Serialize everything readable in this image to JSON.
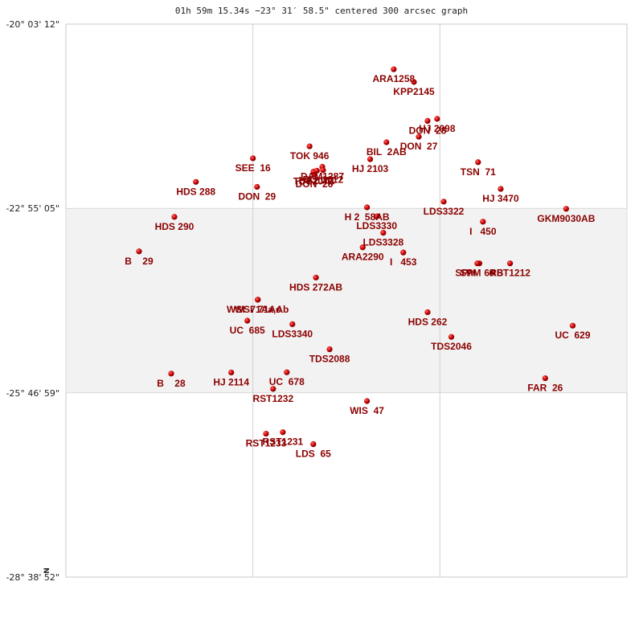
{
  "chart_data": {
    "type": "scatter",
    "title": "01h 59m 15.34s −23° 31′ 58.5\" centered 300 arcsec graph",
    "north_marker": "N",
    "y_ticks": [
      "-20° 03' 12\"",
      "-22° 55' 05\"",
      "-25° 46' 59\"",
      "-28° 38' 52\""
    ],
    "xlim": [
      0,
      300
    ],
    "ylim": [
      0,
      300
    ],
    "band": [
      100,
      200
    ],
    "vlines": [
      100,
      200
    ],
    "marker_color": "#cc0000",
    "label_color": "#8b0000",
    "points": [
      {
        "name": "ARA1258",
        "x": 175.3,
        "y": 24.5,
        "dx": 0,
        "dy": 16
      },
      {
        "name": "KPP2145",
        "x": 186.1,
        "y": 31.4,
        "dx": 0,
        "dy": 16
      },
      {
        "name": "DON  28",
        "x": 193.4,
        "y": 52.5,
        "dx": 0,
        "dy": 16
      },
      {
        "name": "HJ 2098",
        "x": 198.5,
        "y": 51.4,
        "dx": 0,
        "dy": 16
      },
      {
        "name": "DON  27",
        "x": 188.7,
        "y": 61.1,
        "dx": 0,
        "dy": 16
      },
      {
        "name": "BIL  2AB",
        "x": 171.4,
        "y": 64.1,
        "dx": 0,
        "dy": 16
      },
      {
        "name": "TOK 946",
        "x": 130.3,
        "y": 66.3,
        "dx": 0,
        "dy": 16
      },
      {
        "name": "HJ 2103",
        "x": 162.7,
        "y": 73.3,
        "dx": 0,
        "dy": 16
      },
      {
        "name": "SEE  16",
        "x": 100.0,
        "y": 72.8,
        "dx": 0,
        "dy": 16
      },
      {
        "name": "TSN  71",
        "x": 220.4,
        "y": 74.9,
        "dx": 0,
        "dy": 16
      },
      {
        "name": "HDS 288",
        "x": 69.5,
        "y": 85.6,
        "dx": 0,
        "dy": 16
      },
      {
        "name": "DON  29",
        "x": 102.2,
        "y": 88.3,
        "dx": 0,
        "dy": 16
      },
      {
        "name": "DAM1287",
        "x": 137.1,
        "y": 77.4,
        "dx": 0,
        "dy": 16
      },
      {
        "name": "DON  26",
        "x": 132.8,
        "y": 81.5,
        "dx": 0,
        "dy": 16
      },
      {
        "name": "TDS2072",
        "x": 132.4,
        "y": 80.0,
        "dx": 0,
        "dy": 16
      },
      {
        "name": "HJ 2101",
        "x": 134.2,
        "y": 79.5,
        "dx": 0,
        "dy": 16
      },
      {
        "name": "BU  1012",
        "x": 137.5,
        "y": 79.2,
        "dx": 0,
        "dy": 16
      },
      {
        "name": "HJ 3470",
        "x": 232.5,
        "y": 89.4,
        "dx": 0,
        "dy": 16
      },
      {
        "name": "LDS3322",
        "x": 202.0,
        "y": 96.3,
        "dx": 0,
        "dy": 16
      },
      {
        "name": "H 2  58AB",
        "x": 161.0,
        "y": 99.4,
        "dx": 0,
        "dy": 16
      },
      {
        "name": "GKM9030AB",
        "x": 267.5,
        "y": 100.2,
        "dx": 0,
        "dy": 16
      },
      {
        "name": "HDS 290",
        "x": 58.0,
        "y": 104.6,
        "dx": 0,
        "dy": 16
      },
      {
        "name": "LDS3330",
        "x": 166.2,
        "y": 104.3,
        "dx": 0,
        "dy": 16
      },
      {
        "name": "I   450",
        "x": 223.0,
        "y": 107.2,
        "dx": 0,
        "dy": 16
      },
      {
        "name": "LDS3328",
        "x": 169.7,
        "y": 113.2,
        "dx": 0,
        "dy": 16
      },
      {
        "name": "ARA2290",
        "x": 158.7,
        "y": 121.1,
        "dx": 0,
        "dy": 16
      },
      {
        "name": "I   453",
        "x": 180.4,
        "y": 123.9,
        "dx": 0,
        "dy": 16
      },
      {
        "name": "B    29",
        "x": 39.1,
        "y": 123.3,
        "dx": 0,
        "dy": 16
      },
      {
        "name": "SPM   6AB",
        "x": 221.1,
        "y": 129.8,
        "dx": 0,
        "dy": 16
      },
      {
        "name": "SPM   6",
        "x": 220.0,
        "y": 129.8,
        "dx": 0,
        "dy": 16
      },
      {
        "name": "RST1212",
        "x": 237.5,
        "y": 129.8,
        "dx": 0,
        "dy": 16
      },
      {
        "name": "HDS 272AB",
        "x": 133.7,
        "y": 137.5,
        "dx": 0,
        "dy": 16
      },
      {
        "name": "WSI  71Aa,Ab",
        "x": 102.6,
        "y": 149.5,
        "dx": 0,
        "dy": 16
      },
      {
        "name": "WSI  71Ac",
        "x": 102.6,
        "y": 149.5,
        "dx": 0,
        "dy": 16
      },
      {
        "name": "UC  685",
        "x": 97.0,
        "y": 160.9,
        "dx": 0,
        "dy": 16
      },
      {
        "name": "LDS3340",
        "x": 121.1,
        "y": 162.8,
        "dx": 0,
        "dy": 16
      },
      {
        "name": "HDS 262",
        "x": 193.4,
        "y": 156.3,
        "dx": 0,
        "dy": 16
      },
      {
        "name": "TDS2046",
        "x": 206.1,
        "y": 169.7,
        "dx": 0,
        "dy": 16
      },
      {
        "name": "UC  629",
        "x": 271.0,
        "y": 163.6,
        "dx": 0,
        "dy": 16
      },
      {
        "name": "TDS2088",
        "x": 141.0,
        "y": 176.4,
        "dx": 0,
        "dy": 16
      },
      {
        "name": "B    28",
        "x": 56.3,
        "y": 189.6,
        "dx": 0,
        "dy": 16
      },
      {
        "name": "HJ 2114",
        "x": 88.4,
        "y": 189.0,
        "dx": 0,
        "dy": 16
      },
      {
        "name": "UC  678",
        "x": 118.1,
        "y": 188.9,
        "dx": 0,
        "dy": 16
      },
      {
        "name": "RST1232",
        "x": 110.8,
        "y": 197.9,
        "dx": 0,
        "dy": 16
      },
      {
        "name": "FAR  26",
        "x": 256.3,
        "y": 192.1,
        "dx": 0,
        "dy": 16
      },
      {
        "name": "WIS  47",
        "x": 161.0,
        "y": 204.5,
        "dx": 0,
        "dy": 16
      },
      {
        "name": "RST1231",
        "x": 116.0,
        "y": 221.4,
        "dx": 0,
        "dy": 16
      },
      {
        "name": "RST1233",
        "x": 107.0,
        "y": 222.2,
        "dx": 0,
        "dy": 16
      },
      {
        "name": "LDS  65",
        "x": 132.3,
        "y": 227.9,
        "dx": 0,
        "dy": 16
      }
    ]
  }
}
